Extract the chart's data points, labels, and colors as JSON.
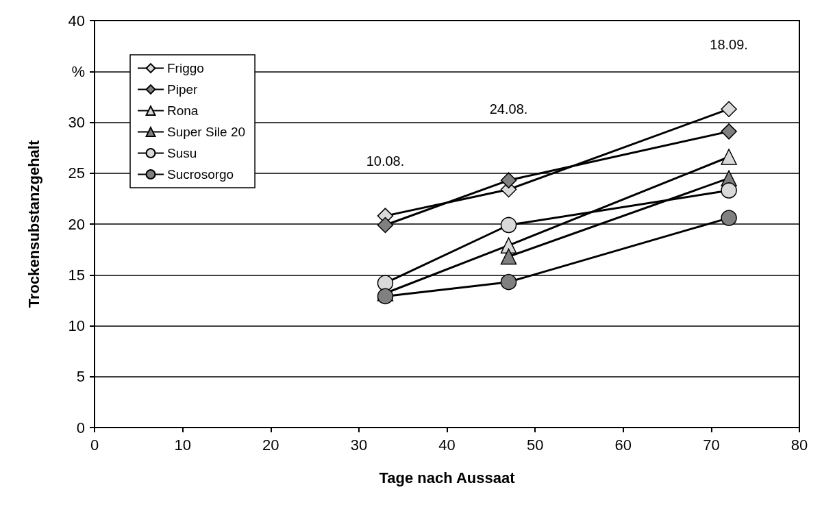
{
  "chart_data": {
    "type": "line",
    "xlabel": "Tage nach Aussaat",
    "ylabel": "Trockensubstanzgehalt",
    "x": [
      33,
      47,
      72
    ],
    "series": [
      {
        "name": "Friggo",
        "color": "#d9d9d9",
        "marker": "diamond",
        "values": [
          20.8,
          23.4,
          31.3
        ]
      },
      {
        "name": "Piper",
        "color": "#808080",
        "marker": "diamond",
        "values": [
          19.9,
          24.3,
          29.1
        ]
      },
      {
        "name": "Rona",
        "color": "#d9d9d9",
        "marker": "triangle",
        "values": [
          13.2,
          17.9,
          26.6
        ]
      },
      {
        "name": "Super Sile 20",
        "color": "#808080",
        "marker": "triangle",
        "values": [
          null,
          16.8,
          24.5
        ]
      },
      {
        "name": "Susu",
        "color": "#d9d9d9",
        "marker": "circle",
        "values": [
          14.2,
          19.9,
          23.3
        ]
      },
      {
        "name": "Sucrosorgo",
        "color": "#808080",
        "marker": "circle",
        "values": [
          12.9,
          14.3,
          20.6
        ]
      }
    ],
    "xlim": [
      0,
      80
    ],
    "xticks": [
      0,
      10,
      20,
      30,
      40,
      50,
      60,
      70,
      80
    ],
    "ylim": [
      0,
      40
    ],
    "yticks": [
      0,
      5,
      10,
      15,
      20,
      25,
      30,
      {
        "value": 35,
        "label": "%"
      },
      40
    ],
    "grid": "y",
    "legend": "top left",
    "line_style": "solid",
    "annotations": [
      "10.08.",
      "24.08.",
      "18.09."
    ]
  }
}
